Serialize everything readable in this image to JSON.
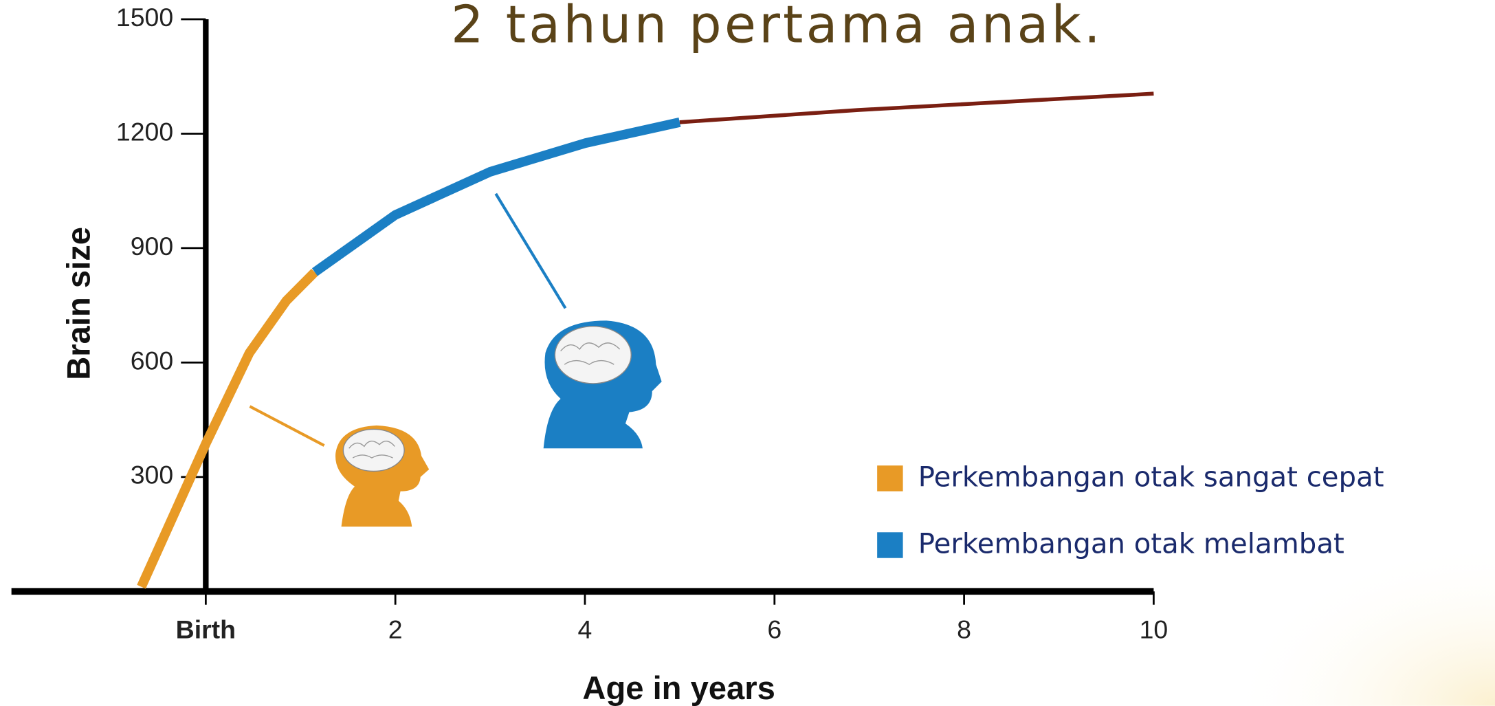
{
  "chart_data": {
    "type": "line",
    "title": "2 tahun pertama anak.",
    "y_label": "Brain size",
    "x_label": "Age in years",
    "x": [
      -0.68,
      0,
      0.46,
      0.85,
      1.15,
      2,
      3,
      4,
      5,
      6.88,
      10
    ],
    "series": [
      {
        "name": "Perkembangan otak sangat cepat",
        "color": "#e89a26",
        "values": [
          12,
          387,
          625,
          762,
          837,
          null,
          null,
          null,
          null,
          null,
          null
        ]
      },
      {
        "name": "Perkembangan otak melambat",
        "color": "#1b7fc4",
        "values": [
          null,
          null,
          null,
          null,
          837,
          987,
          1100,
          1175,
          1230,
          null,
          null
        ]
      },
      {
        "color": "#7a1f12",
        "values": [
          null,
          null,
          null,
          null,
          null,
          null,
          null,
          null,
          1230,
          1262,
          1305
        ]
      }
    ],
    "xlim": [
      -2.05,
      10
    ],
    "ylim": [
      0,
      1500
    ],
    "xticks": [
      {
        "value": 0,
        "label": "Birth"
      },
      2,
      4,
      6,
      8,
      10
    ],
    "yticks": [
      300,
      600,
      900,
      1200,
      1500
    ]
  }
}
